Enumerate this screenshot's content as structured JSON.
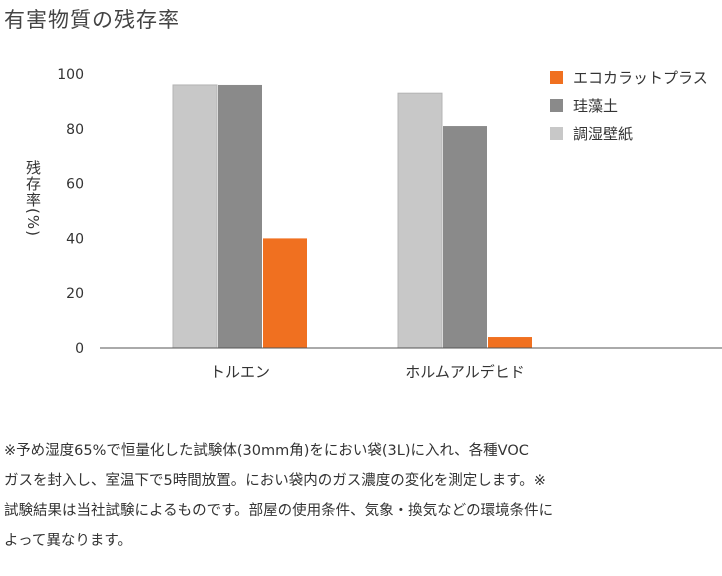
{
  "title": "有害物質の残存率",
  "footnote_lines": [
    "※予め湿度65%で恒量化した試験体(30mm角)をにおい袋(3L)に入れ、各種VOC",
    "ガスを封入し、室温下で5時間放置。におい袋内のガス濃度の変化を測定します。※",
    "試験結果は当社試験によるものです。部屋の使用条件、気象・換気などの環境条件に",
    "よって異なります。"
  ],
  "chart_data": {
    "type": "bar",
    "title": "",
    "xlabel": "",
    "ylabel": "残存率(%)",
    "ylim": [
      0,
      100
    ],
    "yticks": [
      0,
      20,
      40,
      60,
      80,
      100
    ],
    "grid": false,
    "legend_position": "top-right",
    "categories": [
      "トルエン",
      "ホルムアルデヒド"
    ],
    "series": [
      {
        "name": "調湿壁紙",
        "color": "#c8c8c8",
        "values": [
          96,
          93
        ]
      },
      {
        "name": "珪藻土",
        "color": "#8a8a8a",
        "values": [
          96,
          81
        ]
      },
      {
        "name": "エコカラットプラス",
        "color": "#f07020",
        "values": [
          40,
          4
        ]
      }
    ],
    "legend_order": [
      "エコカラットプラス",
      "珪藻土",
      "調湿壁紙"
    ]
  }
}
